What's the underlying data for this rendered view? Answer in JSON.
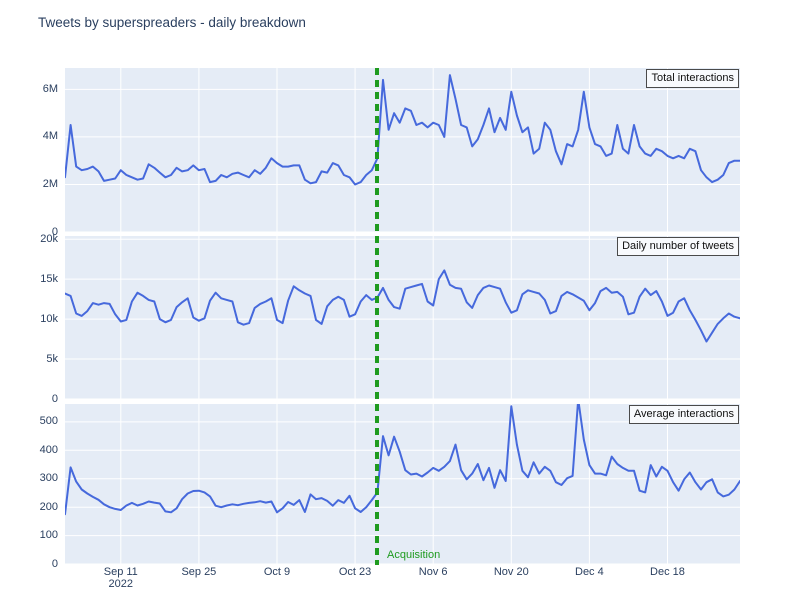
{
  "title": "Tweets by superspreaders - daily breakdown",
  "colors": {
    "line": "#4669dc",
    "panel_bg": "#e5ecf6",
    "grid": "#ffffff",
    "accent_green": "#1f9b1f",
    "text": "#2a3f5f",
    "annotation_border": "#4a4a4a",
    "annotation_bg": "#f8fafd"
  },
  "acquisition": {
    "label": "Acquisition",
    "date_index": 56
  },
  "x_axis": {
    "tick_labels": [
      "Sep 11",
      "Sep 25",
      "Oct 9",
      "Oct 23",
      "Nov 6",
      "Nov 20",
      "Dec 4",
      "Dec 18"
    ],
    "tick_indices": [
      10,
      24,
      38,
      52,
      66,
      80,
      94,
      108
    ],
    "year_label": "2022",
    "n_points": 122
  },
  "chart_data": [
    {
      "type": "line",
      "title": "Total interactions",
      "unit": "millions",
      "ylim": [
        0,
        6.9
      ],
      "ytick_values": [
        0,
        2,
        4,
        6
      ],
      "ytick_labels": [
        "0",
        "2M",
        "4M",
        "6M"
      ],
      "values": [
        2.3,
        4.5,
        2.75,
        2.6,
        2.65,
        2.75,
        2.55,
        2.15,
        2.2,
        2.25,
        2.6,
        2.4,
        2.3,
        2.2,
        2.25,
        2.85,
        2.7,
        2.5,
        2.3,
        2.4,
        2.7,
        2.55,
        2.6,
        2.8,
        2.6,
        2.65,
        2.1,
        2.15,
        2.4,
        2.3,
        2.45,
        2.5,
        2.4,
        2.3,
        2.6,
        2.45,
        2.7,
        3.1,
        2.9,
        2.75,
        2.75,
        2.8,
        2.8,
        2.2,
        2.05,
        2.1,
        2.55,
        2.5,
        2.9,
        2.8,
        2.4,
        2.3,
        2.0,
        2.1,
        2.4,
        2.6,
        3.1,
        6.4,
        4.3,
        5.0,
        4.6,
        5.2,
        5.1,
        4.5,
        4.6,
        4.4,
        4.6,
        4.5,
        4.0,
        6.6,
        5.6,
        4.5,
        4.4,
        3.6,
        3.9,
        4.5,
        5.2,
        4.2,
        4.8,
        4.3,
        5.9,
        4.9,
        4.2,
        4.4,
        3.3,
        3.5,
        4.6,
        4.3,
        3.4,
        2.85,
        3.7,
        3.6,
        4.3,
        5.9,
        4.4,
        3.7,
        3.6,
        3.2,
        3.3,
        4.5,
        3.5,
        3.3,
        4.5,
        3.6,
        3.3,
        3.2,
        3.5,
        3.4,
        3.2,
        3.1,
        3.2,
        3.1,
        3.5,
        3.4,
        2.6,
        2.3,
        2.1,
        2.2,
        2.4,
        2.9,
        3.0,
        3.0
      ]
    },
    {
      "type": "line",
      "title": "Daily number of tweets",
      "unit": "thousands",
      "ylim": [
        0,
        20.4
      ],
      "ytick_values": [
        0,
        5,
        10,
        15,
        20
      ],
      "ytick_labels": [
        "0",
        "5k",
        "10k",
        "15k",
        "20k"
      ],
      "values": [
        13.2,
        12.9,
        10.7,
        10.4,
        11.0,
        12.0,
        11.8,
        12.0,
        11.9,
        10.6,
        9.7,
        9.9,
        12.2,
        13.3,
        12.9,
        12.4,
        12.2,
        10.0,
        9.6,
        9.9,
        11.5,
        12.1,
        12.6,
        10.2,
        9.8,
        10.1,
        12.3,
        13.3,
        12.6,
        12.4,
        12.2,
        9.6,
        9.3,
        9.5,
        11.4,
        11.9,
        12.2,
        12.6,
        9.9,
        9.5,
        12.3,
        14.1,
        13.6,
        13.2,
        12.9,
        9.9,
        9.4,
        11.6,
        12.4,
        12.8,
        12.4,
        10.3,
        10.6,
        12.2,
        13.0,
        12.4,
        12.7,
        13.9,
        12.4,
        11.5,
        11.3,
        13.8,
        14.0,
        14.2,
        14.4,
        12.2,
        11.7,
        15.0,
        16.1,
        14.3,
        13.9,
        13.8,
        12.1,
        11.4,
        13.0,
        13.9,
        14.2,
        14.0,
        13.8,
        12.1,
        10.8,
        11.1,
        13.1,
        13.6,
        13.4,
        13.2,
        12.4,
        10.7,
        11.0,
        12.9,
        13.4,
        13.1,
        12.7,
        12.3,
        11.1,
        12.0,
        13.5,
        13.9,
        13.3,
        13.4,
        12.8,
        10.6,
        10.8,
        12.8,
        13.8,
        13.0,
        13.5,
        12.2,
        10.4,
        10.8,
        12.2,
        12.6,
        11.1,
        9.9,
        8.6,
        7.2,
        8.3,
        9.4,
        10.1,
        10.7,
        10.3,
        10.1
      ]
    },
    {
      "type": "line",
      "title": "Average interactions",
      "unit": "interactions",
      "ylim": [
        0,
        563
      ],
      "ytick_values": [
        0,
        100,
        200,
        300,
        400,
        500
      ],
      "ytick_labels": [
        "0",
        "100",
        "200",
        "300",
        "400",
        "500"
      ],
      "values": [
        175,
        340,
        290,
        262,
        248,
        236,
        226,
        210,
        200,
        194,
        190,
        206,
        215,
        206,
        212,
        220,
        216,
        213,
        185,
        182,
        196,
        228,
        248,
        257,
        258,
        252,
        238,
        205,
        200,
        206,
        210,
        207,
        212,
        215,
        217,
        221,
        216,
        220,
        182,
        196,
        218,
        208,
        225,
        183,
        245,
        228,
        232,
        222,
        205,
        225,
        215,
        240,
        196,
        183,
        200,
        225,
        252,
        450,
        382,
        448,
        395,
        330,
        315,
        318,
        308,
        322,
        338,
        328,
        342,
        362,
        420,
        330,
        298,
        318,
        352,
        295,
        338,
        268,
        330,
        292,
        555,
        420,
        328,
        305,
        358,
        318,
        342,
        328,
        288,
        278,
        302,
        310,
        580,
        438,
        348,
        318,
        318,
        312,
        378,
        352,
        338,
        328,
        328,
        258,
        252,
        348,
        308,
        342,
        328,
        288,
        258,
        298,
        322,
        288,
        262,
        288,
        298,
        252,
        238,
        244,
        262,
        292
      ]
    }
  ]
}
